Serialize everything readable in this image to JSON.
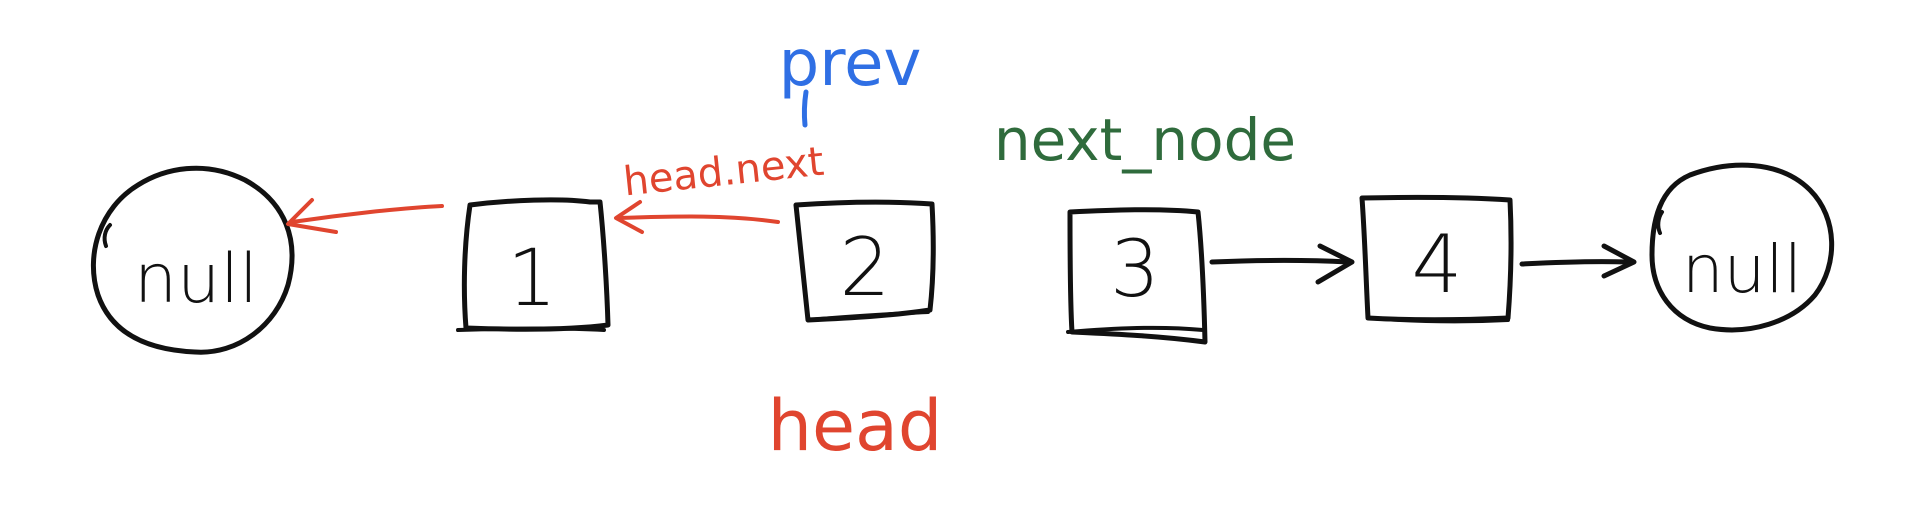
{
  "colors": {
    "ink": "#111111",
    "prev": "#2f6fe4",
    "head": "#e0452f",
    "next_node": "#2f6b3c"
  },
  "nodes": [
    {
      "id": "null-left",
      "shape": "circle",
      "label": "null"
    },
    {
      "id": "node-1",
      "shape": "box",
      "label": "1"
    },
    {
      "id": "node-2",
      "shape": "box",
      "label": "2"
    },
    {
      "id": "node-3",
      "shape": "box",
      "label": "3"
    },
    {
      "id": "node-4",
      "shape": "box",
      "label": "4"
    },
    {
      "id": "null-right",
      "shape": "circle",
      "label": "null"
    }
  ],
  "edges": [
    {
      "from": "node-1",
      "to": "null-left",
      "color": "head"
    },
    {
      "from": "node-2",
      "to": "node-1",
      "color": "head",
      "label": "head.next"
    },
    {
      "from": "node-3",
      "to": "node-4",
      "color": "ink"
    },
    {
      "from": "node-4",
      "to": "null-right",
      "color": "ink"
    }
  ],
  "labels": {
    "prev": "prev",
    "head": "head",
    "head_next": "head.next",
    "next_node": "next_node"
  }
}
